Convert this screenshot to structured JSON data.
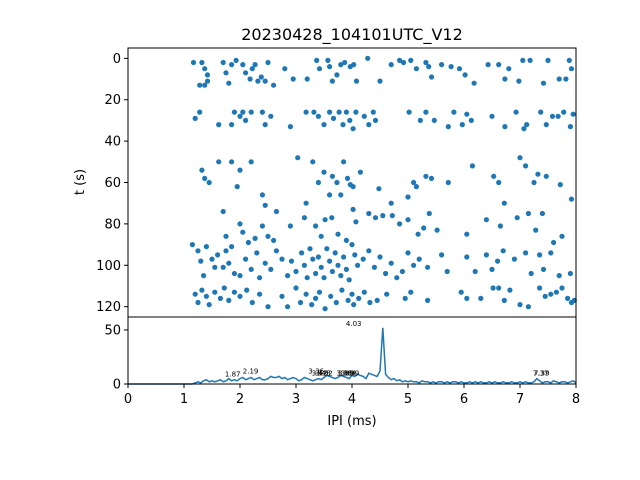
{
  "figure": {
    "title": "20230428_104101UTC_V12",
    "series_color": "#1f77b4"
  },
  "chart_data": [
    {
      "type": "scatter",
      "ylabel": "t (s)",
      "xlim": [
        0,
        8
      ],
      "ylim": [
        125,
        -5
      ],
      "y_inverted": true,
      "yticks": [
        0,
        20,
        40,
        60,
        80,
        100,
        120
      ],
      "grid": false,
      "points": [
        [
          1.17,
          2
        ],
        [
          1.32,
          2
        ],
        [
          1.37,
          5
        ],
        [
          1.42,
          8
        ],
        [
          1.28,
          13
        ],
        [
          1.37,
          13
        ],
        [
          1.42,
          11
        ],
        [
          1.7,
          2
        ],
        [
          1.75,
          7
        ],
        [
          1.8,
          12
        ],
        [
          1.85,
          3
        ],
        [
          1.93,
          1
        ],
        [
          2.05,
          3
        ],
        [
          2.1,
          7
        ],
        [
          2.18,
          10
        ],
        [
          2.22,
          5
        ],
        [
          2.27,
          3
        ],
        [
          2.32,
          11
        ],
        [
          2.38,
          9
        ],
        [
          2.45,
          11
        ],
        [
          2.5,
          2
        ],
        [
          2.6,
          13
        ],
        [
          2.8,
          5
        ],
        [
          2.95,
          10
        ],
        [
          3.2,
          10
        ],
        [
          3.37,
          1
        ],
        [
          3.42,
          5
        ],
        [
          3.57,
          1
        ],
        [
          3.6,
          4
        ],
        [
          3.65,
          11
        ],
        [
          3.73,
          8
        ],
        [
          3.8,
          3
        ],
        [
          3.87,
          2
        ],
        [
          3.97,
          4
        ],
        [
          4.03,
          3
        ],
        [
          4.08,
          11
        ],
        [
          4.28,
          0
        ],
        [
          4.5,
          11
        ],
        [
          4.7,
          3
        ],
        [
          4.85,
          1
        ],
        [
          4.92,
          2
        ],
        [
          5.05,
          1
        ],
        [
          5.15,
          5
        ],
        [
          5.32,
          2
        ],
        [
          5.37,
          4
        ],
        [
          5.42,
          9
        ],
        [
          5.6,
          3
        ],
        [
          5.77,
          4
        ],
        [
          5.92,
          5
        ],
        [
          6.02,
          8
        ],
        [
          6.18,
          12
        ],
        [
          6.43,
          3
        ],
        [
          6.62,
          3
        ],
        [
          6.73,
          10
        ],
        [
          6.8,
          5
        ],
        [
          6.98,
          11
        ],
        [
          7.05,
          1
        ],
        [
          7.18,
          1
        ],
        [
          7.42,
          12
        ],
        [
          7.5,
          1
        ],
        [
          7.7,
          10
        ],
        [
          7.82,
          10
        ],
        [
          7.88,
          1
        ],
        [
          7.92,
          5
        ],
        [
          1.2,
          29
        ],
        [
          1.28,
          26
        ],
        [
          1.62,
          32
        ],
        [
          1.85,
          32
        ],
        [
          1.9,
          26
        ],
        [
          2.0,
          28
        ],
        [
          2.05,
          26
        ],
        [
          2.1,
          30
        ],
        [
          2.2,
          26
        ],
        [
          2.4,
          26
        ],
        [
          2.45,
          32
        ],
        [
          2.55,
          28
        ],
        [
          2.9,
          33
        ],
        [
          3.18,
          26
        ],
        [
          3.32,
          26
        ],
        [
          3.4,
          28
        ],
        [
          3.5,
          32
        ],
        [
          3.6,
          26
        ],
        [
          3.67,
          29
        ],
        [
          3.77,
          26
        ],
        [
          3.84,
          32
        ],
        [
          3.9,
          26
        ],
        [
          3.96,
          30
        ],
        [
          4.02,
          34
        ],
        [
          4.07,
          26
        ],
        [
          4.22,
          28
        ],
        [
          4.3,
          32
        ],
        [
          4.38,
          26
        ],
        [
          4.42,
          30
        ],
        [
          5.02,
          26
        ],
        [
          5.22,
          30
        ],
        [
          5.32,
          26
        ],
        [
          5.47,
          30
        ],
        [
          5.72,
          33
        ],
        [
          5.82,
          26
        ],
        [
          5.97,
          32
        ],
        [
          6.05,
          27
        ],
        [
          6.13,
          30
        ],
        [
          6.5,
          28
        ],
        [
          6.73,
          33
        ],
        [
          6.93,
          26
        ],
        [
          7.07,
          34
        ],
        [
          7.12,
          32
        ],
        [
          7.37,
          26
        ],
        [
          7.47,
          32
        ],
        [
          7.58,
          28
        ],
        [
          7.68,
          28
        ],
        [
          7.78,
          26
        ],
        [
          7.9,
          33
        ],
        [
          7.95,
          27
        ],
        [
          1.32,
          54
        ],
        [
          1.37,
          58
        ],
        [
          1.45,
          60
        ],
        [
          1.62,
          50
        ],
        [
          1.85,
          50
        ],
        [
          1.95,
          62
        ],
        [
          2.0,
          54
        ],
        [
          2.2,
          50
        ],
        [
          2.4,
          66
        ],
        [
          2.45,
          71
        ],
        [
          2.65,
          74
        ],
        [
          3.03,
          48
        ],
        [
          3.18,
          70
        ],
        [
          3.3,
          50
        ],
        [
          3.4,
          60
        ],
        [
          3.5,
          55
        ],
        [
          3.6,
          66
        ],
        [
          3.65,
          57
        ],
        [
          3.73,
          60
        ],
        [
          3.8,
          66
        ],
        [
          3.85,
          50
        ],
        [
          3.92,
          58
        ],
        [
          3.97,
          61
        ],
        [
          4.02,
          62
        ],
        [
          4.15,
          55
        ],
        [
          4.48,
          63
        ],
        [
          4.7,
          70
        ],
        [
          5.0,
          67
        ],
        [
          5.1,
          60
        ],
        [
          5.15,
          62
        ],
        [
          5.32,
          57
        ],
        [
          5.42,
          58
        ],
        [
          5.72,
          60
        ],
        [
          6.15,
          52
        ],
        [
          6.53,
          57
        ],
        [
          6.62,
          60
        ],
        [
          6.72,
          70
        ],
        [
          7.0,
          48
        ],
        [
          7.1,
          52
        ],
        [
          7.25,
          60
        ],
        [
          7.32,
          56
        ],
        [
          7.47,
          57
        ],
        [
          7.72,
          61
        ],
        [
          7.92,
          68
        ],
        [
          1.7,
          74
        ],
        [
          1.75,
          86
        ],
        [
          1.85,
          91
        ],
        [
          2.0,
          80
        ],
        [
          2.05,
          84
        ],
        [
          2.15,
          89
        ],
        [
          2.27,
          87
        ],
        [
          2.4,
          81
        ],
        [
          2.5,
          86
        ],
        [
          2.6,
          88
        ],
        [
          2.9,
          81
        ],
        [
          3.15,
          77
        ],
        [
          3.35,
          81
        ],
        [
          3.45,
          86
        ],
        [
          3.52,
          78
        ],
        [
          3.64,
          77
        ],
        [
          3.75,
          85
        ],
        [
          3.9,
          88
        ],
        [
          4.02,
          73
        ],
        [
          4.07,
          79
        ],
        [
          4.3,
          75
        ],
        [
          4.42,
          77
        ],
        [
          4.55,
          76
        ],
        [
          4.72,
          76
        ],
        [
          4.85,
          80
        ],
        [
          5.0,
          78
        ],
        [
          5.18,
          85
        ],
        [
          5.28,
          82
        ],
        [
          5.38,
          75
        ],
        [
          5.52,
          83
        ],
        [
          6.05,
          85
        ],
        [
          6.4,
          78
        ],
        [
          6.65,
          81
        ],
        [
          6.95,
          77
        ],
        [
          7.15,
          75
        ],
        [
          7.28,
          83
        ],
        [
          7.4,
          75
        ],
        [
          7.6,
          89
        ],
        [
          7.75,
          86
        ],
        [
          1.15,
          90
        ],
        [
          1.25,
          93
        ],
        [
          1.3,
          98
        ],
        [
          1.35,
          105
        ],
        [
          1.4,
          91
        ],
        [
          1.5,
          97
        ],
        [
          1.55,
          101
        ],
        [
          1.6,
          95
        ],
        [
          1.7,
          101
        ],
        [
          1.75,
          93
        ],
        [
          1.8,
          99
        ],
        [
          1.9,
          104
        ],
        [
          2.0,
          105
        ],
        [
          2.1,
          97
        ],
        [
          2.2,
          102
        ],
        [
          2.3,
          94
        ],
        [
          2.35,
          106
        ],
        [
          2.45,
          99
        ],
        [
          2.55,
          102
        ],
        [
          2.65,
          93
        ],
        [
          2.75,
          97
        ],
        [
          2.85,
          105
        ],
        [
          2.92,
          98
        ],
        [
          3.0,
          103
        ],
        [
          3.1,
          94
        ],
        [
          3.15,
          100
        ],
        [
          3.2,
          106
        ],
        [
          3.25,
          92
        ],
        [
          3.3,
          97
        ],
        [
          3.35,
          104
        ],
        [
          3.4,
          96
        ],
        [
          3.45,
          101
        ],
        [
          3.5,
          106
        ],
        [
          3.55,
          92
        ],
        [
          3.6,
          98
        ],
        [
          3.65,
          103
        ],
        [
          3.7,
          94
        ],
        [
          3.75,
          100
        ],
        [
          3.8,
          105
        ],
        [
          3.85,
          96
        ],
        [
          3.9,
          102
        ],
        [
          3.95,
          107
        ],
        [
          4.0,
          90
        ],
        [
          4.05,
          95
        ],
        [
          4.1,
          100
        ],
        [
          4.2,
          97
        ],
        [
          4.3,
          93
        ],
        [
          4.4,
          101
        ],
        [
          4.5,
          96
        ],
        [
          4.6,
          104
        ],
        [
          4.7,
          99
        ],
        [
          4.8,
          106
        ],
        [
          4.9,
          103
        ],
        [
          5.0,
          94
        ],
        [
          5.1,
          100
        ],
        [
          5.2,
          97
        ],
        [
          5.35,
          101
        ],
        [
          5.6,
          95
        ],
        [
          5.7,
          103
        ],
        [
          6.05,
          96
        ],
        [
          6.2,
          103
        ],
        [
          6.4,
          95
        ],
        [
          6.5,
          102
        ],
        [
          6.6,
          98
        ],
        [
          6.7,
          93
        ],
        [
          6.9,
          97
        ],
        [
          7.1,
          94
        ],
        [
          7.2,
          104
        ],
        [
          7.35,
          95
        ],
        [
          7.42,
          102
        ],
        [
          7.55,
          94
        ],
        [
          7.7,
          105
        ],
        [
          7.9,
          104
        ],
        [
          1.2,
          114
        ],
        [
          1.25,
          118
        ],
        [
          1.32,
          112
        ],
        [
          1.4,
          115
        ],
        [
          1.45,
          119
        ],
        [
          1.55,
          113
        ],
        [
          1.65,
          116
        ],
        [
          1.72,
          111
        ],
        [
          1.8,
          117
        ],
        [
          1.9,
          113
        ],
        [
          2.0,
          115
        ],
        [
          2.12,
          112
        ],
        [
          2.22,
          118
        ],
        [
          2.35,
          114
        ],
        [
          2.5,
          120
        ],
        [
          2.75,
          115
        ],
        [
          2.85,
          120
        ],
        [
          3.0,
          111
        ],
        [
          3.08,
          118
        ],
        [
          3.18,
          114
        ],
        [
          3.28,
          119
        ],
        [
          3.35,
          116
        ],
        [
          3.42,
          113
        ],
        [
          3.52,
          121
        ],
        [
          3.62,
          115
        ],
        [
          3.72,
          118
        ],
        [
          3.82,
          112
        ],
        [
          3.93,
          117
        ],
        [
          4.0,
          114
        ],
        [
          4.03,
          119
        ],
        [
          4.12,
          116
        ],
        [
          4.22,
          113
        ],
        [
          4.32,
          118
        ],
        [
          4.45,
          117
        ],
        [
          4.62,
          114
        ],
        [
          4.95,
          116
        ],
        [
          5.05,
          113
        ],
        [
          5.35,
          117
        ],
        [
          5.95,
          113
        ],
        [
          6.05,
          116
        ],
        [
          6.3,
          116
        ],
        [
          6.52,
          111
        ],
        [
          6.62,
          111
        ],
        [
          6.72,
          117
        ],
        [
          6.82,
          112
        ],
        [
          7.0,
          119
        ],
        [
          7.15,
          120
        ],
        [
          7.35,
          111
        ],
        [
          7.45,
          115
        ],
        [
          7.55,
          114
        ],
        [
          7.65,
          113
        ],
        [
          7.75,
          111
        ],
        [
          7.85,
          116
        ],
        [
          7.92,
          118
        ],
        [
          7.97,
          117
        ]
      ]
    },
    {
      "type": "line",
      "xlabel": "IPI (ms)",
      "xlim": [
        0,
        8
      ],
      "ylim": [
        0,
        62
      ],
      "xticks": [
        0,
        1,
        2,
        3,
        4,
        5,
        6,
        7,
        8
      ],
      "yticks": [
        0,
        50
      ],
      "grid": false,
      "step_ms": 0.05,
      "values": [
        0,
        0,
        0,
        0,
        0,
        0,
        0,
        0,
        0,
        0,
        0,
        0,
        0,
        0,
        0,
        0,
        0,
        0,
        0,
        0,
        0,
        0,
        0,
        0,
        1,
        2,
        1,
        3,
        4,
        2,
        3,
        2,
        3,
        4,
        2,
        3,
        5,
        3,
        4,
        3,
        5,
        6,
        4,
        5,
        6,
        4,
        5,
        6,
        4,
        4,
        5,
        7,
        6,
        6,
        7,
        5,
        6,
        4,
        5,
        6,
        5,
        3,
        4,
        6,
        5,
        4,
        3,
        4,
        5,
        4,
        6,
        8,
        7,
        6,
        5,
        6,
        8,
        7,
        6,
        5,
        8,
        7,
        9,
        8,
        7,
        5,
        10,
        9,
        8,
        7,
        12,
        52,
        9,
        6,
        4,
        5,
        3,
        4,
        2,
        3,
        2,
        3,
        2,
        2,
        1,
        3,
        2,
        2,
        1,
        2,
        1,
        2,
        2,
        1,
        2,
        1,
        2,
        2,
        1,
        2,
        1,
        1,
        2,
        1,
        2,
        1,
        2,
        1,
        1,
        2,
        1,
        2,
        1,
        1,
        2,
        1,
        1,
        2,
        1,
        1,
        2,
        1,
        2,
        1,
        1,
        2,
        5,
        3,
        1,
        2,
        2,
        1,
        3,
        2,
        1,
        2,
        2,
        1,
        2,
        3,
        1
      ],
      "peaks": [
        {
          "x": 1.87,
          "y": 5,
          "label": "1.87"
        },
        {
          "x": 2.19,
          "y": 8,
          "label": "2.19"
        },
        {
          "x": 3.36,
          "y": 8,
          "label": "3.36"
        },
        {
          "x": 3.42,
          "y": 6,
          "label": "3.42"
        },
        {
          "x": 3.48,
          "y": 6,
          "label": "3.48"
        },
        {
          "x": 3.52,
          "y": 6,
          "label": "3.52"
        },
        {
          "x": 3.86,
          "y": 6,
          "label": "3.86"
        },
        {
          "x": 3.89,
          "y": 6,
          "label": "3.89"
        },
        {
          "x": 3.94,
          "y": 6,
          "label": "3.94"
        },
        {
          "x": 3.99,
          "y": 6,
          "label": "3.99"
        },
        {
          "x": 4.03,
          "y": 52,
          "label": "4.03"
        },
        {
          "x": 7.37,
          "y": 6,
          "label": "7.37"
        },
        {
          "x": 7.39,
          "y": 6,
          "label": "7.39"
        }
      ]
    }
  ]
}
